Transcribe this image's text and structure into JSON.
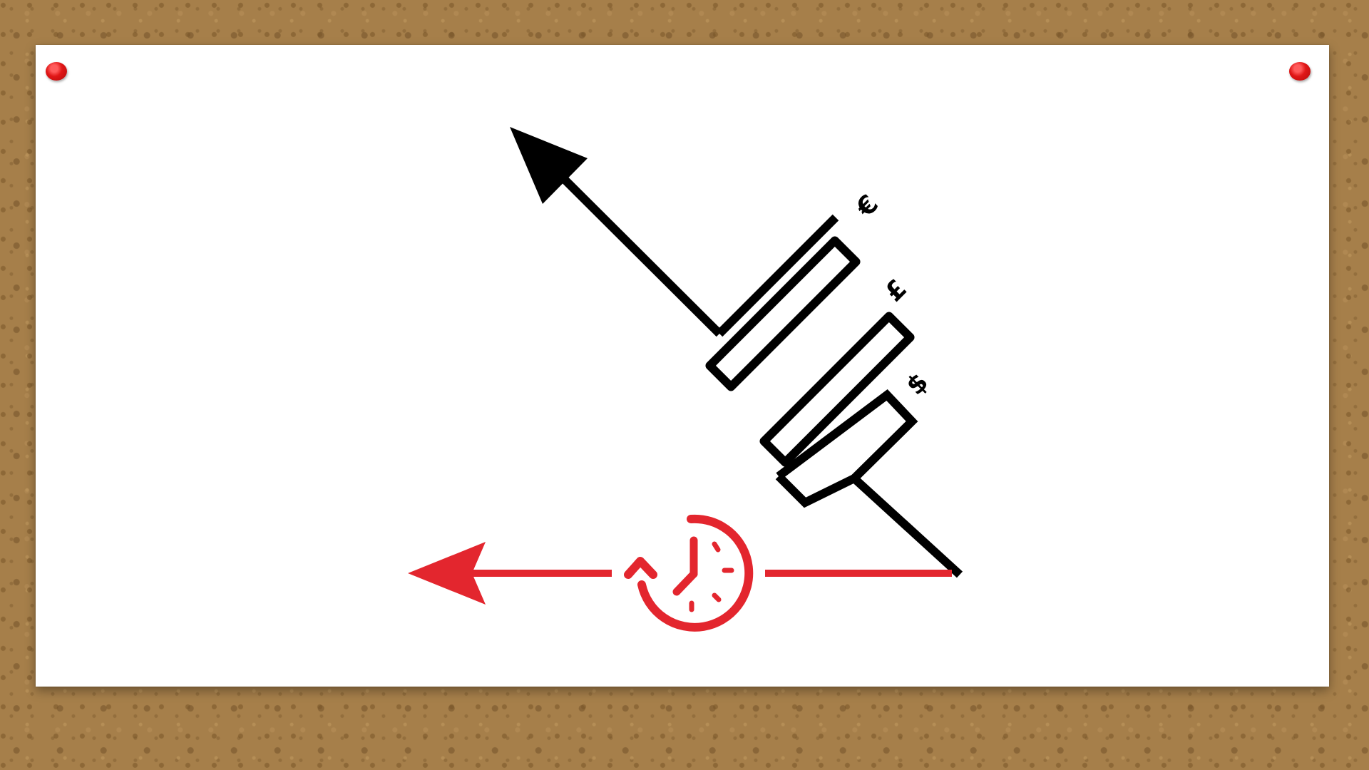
{
  "diagram": {
    "currency_symbols": {
      "euro": "€",
      "pound": "£",
      "dollar": "$"
    },
    "icons": [
      "push-pin-icon",
      "clock-history-icon",
      "arrow-up-left-icon",
      "arrow-left-icon"
    ]
  },
  "colors": {
    "board": "#a67f4a",
    "paper": "#ffffff",
    "pin": "#e01616",
    "line_black": "#000000",
    "line_red": "#e3262e"
  }
}
